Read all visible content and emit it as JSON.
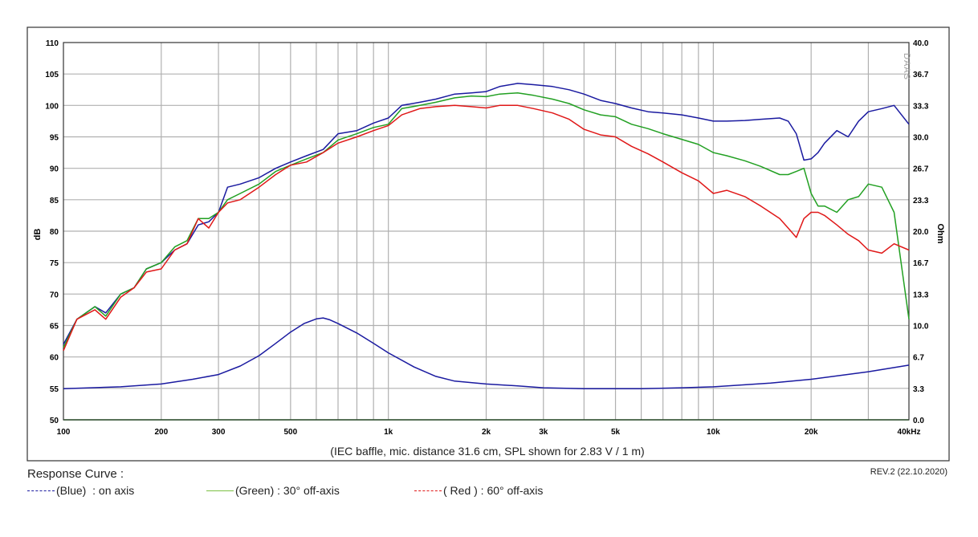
{
  "chart_data": {
    "type": "line",
    "xlabel_unit": "kHz",
    "ylabel": "dB",
    "ylabel_right": "Ohm",
    "caption": "(IEC baffle, mic. distance 31.6 cm, SPL shown for 2.83 V / 1 m)",
    "watermark": "DAAS",
    "x_scale": "log",
    "xlim": [
      100,
      40000
    ],
    "ylim": [
      50,
      110
    ],
    "ylim_right": [
      0,
      40
    ],
    "x_ticks": [
      "100",
      "200",
      "300",
      "500",
      "1k",
      "2k",
      "3k",
      "5k",
      "10k",
      "20k",
      "40kHz"
    ],
    "x_tick_values": [
      100,
      200,
      300,
      500,
      1000,
      2000,
      3000,
      5000,
      10000,
      20000,
      40000
    ],
    "y_ticks": [
      "50",
      "55",
      "60",
      "65",
      "70",
      "75",
      "80",
      "85",
      "90",
      "95",
      "100",
      "105",
      "110"
    ],
    "y_ticks_right": [
      "0.0",
      "3.3",
      "6.7",
      "10.0",
      "13.3",
      "16.7",
      "20.0",
      "23.3",
      "26.7",
      "30.0",
      "33.3",
      "36.7",
      "40.0"
    ],
    "grid": true,
    "series": [
      {
        "name": "on axis",
        "color": "#1a1aa0",
        "x": [
          100,
          110,
          125,
          135,
          150,
          165,
          180,
          200,
          220,
          240,
          260,
          280,
          300,
          320,
          350,
          400,
          450,
          500,
          560,
          630,
          700,
          800,
          900,
          1000,
          1100,
          1250,
          1400,
          1600,
          1800,
          2000,
          2200,
          2500,
          2800,
          3200,
          3600,
          4000,
          4500,
          5000,
          5600,
          6300,
          7000,
          8000,
          9000,
          10000,
          11000,
          12500,
          14000,
          16000,
          17000,
          18000,
          19000,
          20000,
          21000,
          22000,
          24000,
          26000,
          28000,
          30000,
          33000,
          36000,
          40000
        ],
        "values": [
          62,
          66,
          68,
          67,
          70,
          71,
          74,
          75,
          77,
          78,
          81,
          81.5,
          83,
          87,
          87.5,
          88.5,
          90,
          91,
          92,
          93,
          95.5,
          96,
          97.2,
          98,
          100,
          100.5,
          101,
          101.8,
          102,
          102.2,
          103,
          103.5,
          103.3,
          103,
          102.5,
          101.8,
          100.8,
          100.3,
          99.6,
          99,
          98.8,
          98.5,
          98,
          97.5,
          97.5,
          97.6,
          97.8,
          98,
          97.5,
          95.5,
          91.3,
          91.5,
          92.5,
          94,
          96,
          95,
          97.5,
          99,
          99.5,
          100,
          97
        ]
      },
      {
        "name": "30° off-axis",
        "color": "#22a022",
        "x": [
          100,
          110,
          125,
          135,
          150,
          165,
          180,
          200,
          220,
          240,
          260,
          280,
          300,
          320,
          350,
          400,
          450,
          500,
          560,
          630,
          700,
          800,
          900,
          1000,
          1100,
          1250,
          1400,
          1600,
          1800,
          2000,
          2200,
          2500,
          2800,
          3200,
          3600,
          4000,
          4500,
          5000,
          5600,
          6300,
          7000,
          8000,
          9000,
          10000,
          11000,
          12500,
          14000,
          16000,
          17000,
          18000,
          19000,
          20000,
          21000,
          22000,
          24000,
          26000,
          28000,
          30000,
          33000,
          36000,
          40000
        ],
        "values": [
          61.5,
          66,
          68,
          66.5,
          70,
          71,
          74,
          75,
          77.5,
          78.5,
          82,
          82,
          83,
          85,
          86,
          87.5,
          89.5,
          90.5,
          91.5,
          92.5,
          94.5,
          95.5,
          96.5,
          97,
          99.5,
          100,
          100.5,
          101.2,
          101.5,
          101.4,
          101.8,
          102,
          101.6,
          101,
          100.3,
          99.3,
          98.5,
          98.2,
          97,
          96.3,
          95.5,
          94.6,
          93.8,
          92.5,
          92,
          91.2,
          90.3,
          89,
          89,
          89.5,
          90,
          86,
          84,
          84,
          83,
          85,
          85.5,
          87.5,
          87,
          83,
          66
        ]
      },
      {
        "name": "60° off-axis",
        "color": "#e01818",
        "x": [
          100,
          110,
          125,
          135,
          150,
          165,
          180,
          200,
          220,
          240,
          260,
          280,
          300,
          320,
          350,
          400,
          450,
          500,
          560,
          630,
          700,
          800,
          900,
          1000,
          1100,
          1250,
          1400,
          1600,
          1800,
          2000,
          2200,
          2500,
          2800,
          3200,
          3600,
          4000,
          4500,
          5000,
          5600,
          6300,
          7000,
          8000,
          9000,
          10000,
          11000,
          12500,
          14000,
          16000,
          17000,
          18000,
          19000,
          20000,
          21000,
          22000,
          24000,
          26000,
          28000,
          30000,
          33000,
          36000,
          40000
        ],
        "values": [
          61,
          66,
          67.5,
          66,
          69.5,
          71,
          73.5,
          74,
          77,
          78,
          82,
          80.5,
          83,
          84.5,
          85,
          87,
          89,
          90.5,
          91,
          92.5,
          94,
          95,
          96,
          96.8,
          98.5,
          99.5,
          99.8,
          100,
          99.8,
          99.6,
          100,
          100,
          99.5,
          98.8,
          97.8,
          96.2,
          95.3,
          95,
          93.5,
          92.3,
          91,
          89.3,
          88,
          86,
          86.5,
          85.5,
          84,
          82,
          80.5,
          79,
          82,
          83,
          83,
          82.5,
          81,
          79.5,
          78.5,
          77,
          76.5,
          78,
          77
        ]
      },
      {
        "name": "impedance",
        "color": "#1a1aa0",
        "axis": "right",
        "x": [
          100,
          150,
          200,
          250,
          300,
          350,
          400,
          450,
          500,
          550,
          600,
          630,
          660,
          700,
          800,
          900,
          1000,
          1200,
          1400,
          1600,
          2000,
          2500,
          3000,
          4000,
          5000,
          6000,
          8000,
          10000,
          15000,
          20000,
          30000,
          40000
        ],
        "values": [
          3.3,
          3.5,
          3.8,
          4.3,
          4.8,
          5.7,
          6.8,
          8.1,
          9.3,
          10.2,
          10.7,
          10.8,
          10.6,
          10.2,
          9.2,
          8.1,
          7.1,
          5.6,
          4.6,
          4.1,
          3.8,
          3.6,
          3.4,
          3.3,
          3.3,
          3.3,
          3.4,
          3.5,
          3.9,
          4.3,
          5.1,
          5.8
        ]
      }
    ]
  },
  "legend": {
    "title": "Response Curve :",
    "items": [
      {
        "label": "(Blue)  : on axis",
        "color": "#1a1aa0"
      },
      {
        "label": "(Green) : 30° off-axis",
        "color": "#22a022"
      },
      {
        "label": "( Red ) : 60° off-axis",
        "color": "#e01818"
      }
    ]
  },
  "revision": "REV.2 (22.10.2020)"
}
